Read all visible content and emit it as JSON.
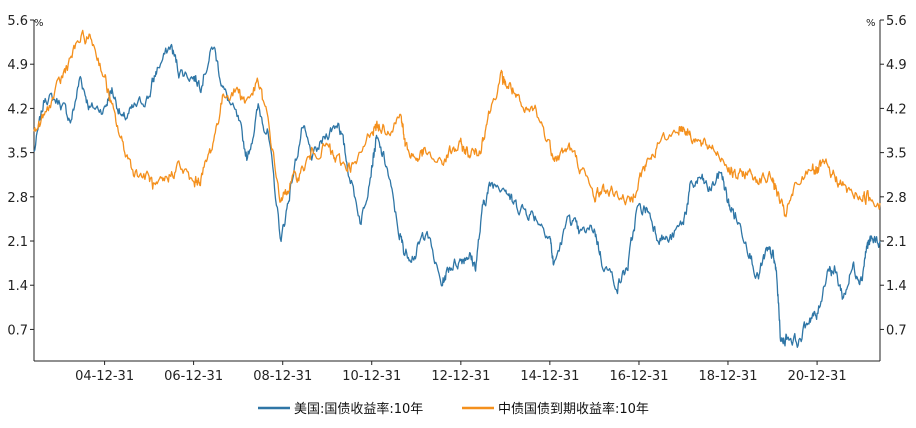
{
  "chart_data": {
    "type": "line",
    "title": "",
    "unit_left": "%",
    "unit_right": "%",
    "ylim": [
      0.2,
      5.6
    ],
    "y_ticks": [
      0.7,
      1.4,
      2.1,
      2.8,
      3.5,
      4.2,
      4.9,
      5.6
    ],
    "y_tick_labels": [
      "0.7",
      "1.4",
      "2.1",
      "2.8",
      "3.5",
      "4.2",
      "4.9",
      "5.6"
    ],
    "x_range": [
      "2003-06-01",
      "2022-05-31"
    ],
    "x_ticks": [
      "2004-12-31",
      "2006-12-31",
      "2008-12-31",
      "2010-12-31",
      "2012-12-31",
      "2014-12-31",
      "2016-12-31",
      "2018-12-31",
      "2020-12-31"
    ],
    "x_tick_labels": [
      "04-12-31",
      "06-12-31",
      "08-12-31",
      "10-12-31",
      "12-12-31",
      "14-12-31",
      "16-12-31",
      "18-12-31",
      "20-12-31"
    ],
    "legend_position": "bottom",
    "series": [
      {
        "name": "美国:国债收益率:10年",
        "color": "#2f76a6",
        "points": [
          [
            "2003-06-01",
            3.5
          ],
          [
            "2003-09-01",
            4.4
          ],
          [
            "2003-12-31",
            4.3
          ],
          [
            "2004-04-01",
            4.0
          ],
          [
            "2004-06-15",
            4.7
          ],
          [
            "2004-09-01",
            4.2
          ],
          [
            "2004-12-31",
            4.2
          ],
          [
            "2005-03-01",
            4.5
          ],
          [
            "2005-06-01",
            4.0
          ],
          [
            "2005-09-01",
            4.2
          ],
          [
            "2005-12-31",
            4.4
          ],
          [
            "2006-03-01",
            4.8
          ],
          [
            "2006-06-28",
            5.2
          ],
          [
            "2006-09-01",
            4.8
          ],
          [
            "2006-12-31",
            4.7
          ],
          [
            "2007-03-01",
            4.6
          ],
          [
            "2007-06-12",
            5.2
          ],
          [
            "2007-09-01",
            4.5
          ],
          [
            "2007-12-31",
            4.0
          ],
          [
            "2008-03-17",
            3.4
          ],
          [
            "2008-06-13",
            4.2
          ],
          [
            "2008-09-01",
            3.8
          ],
          [
            "2008-12-18",
            2.1
          ],
          [
            "2009-03-01",
            2.9
          ],
          [
            "2009-06-10",
            3.9
          ],
          [
            "2009-09-01",
            3.4
          ],
          [
            "2009-12-31",
            3.8
          ],
          [
            "2010-04-05",
            4.0
          ],
          [
            "2010-06-15",
            3.3
          ],
          [
            "2010-10-05",
            2.4
          ],
          [
            "2010-12-31",
            3.3
          ],
          [
            "2011-02-08",
            3.7
          ],
          [
            "2011-05-01",
            3.3
          ],
          [
            "2011-08-15",
            2.2
          ],
          [
            "2011-10-01",
            1.9
          ],
          [
            "2011-12-31",
            1.9
          ],
          [
            "2012-03-20",
            2.3
          ],
          [
            "2012-07-24",
            1.4
          ],
          [
            "2012-10-01",
            1.7
          ],
          [
            "2012-12-31",
            1.8
          ],
          [
            "2013-03-01",
            1.9
          ],
          [
            "2013-05-01",
            1.7
          ],
          [
            "2013-07-05",
            2.7
          ],
          [
            "2013-09-05",
            3.0
          ],
          [
            "2013-12-31",
            3.0
          ],
          [
            "2014-03-01",
            2.7
          ],
          [
            "2014-06-01",
            2.6
          ],
          [
            "2014-09-01",
            2.5
          ],
          [
            "2014-12-31",
            2.2
          ],
          [
            "2015-01-30",
            1.7
          ],
          [
            "2015-06-10",
            2.5
          ],
          [
            "2015-09-01",
            2.2
          ],
          [
            "2015-12-31",
            2.3
          ],
          [
            "2016-03-01",
            1.8
          ],
          [
            "2016-07-08",
            1.4
          ],
          [
            "2016-10-01",
            1.7
          ],
          [
            "2016-12-15",
            2.6
          ],
          [
            "2017-03-13",
            2.6
          ],
          [
            "2017-06-01",
            2.2
          ],
          [
            "2017-09-07",
            2.1
          ],
          [
            "2017-12-31",
            2.4
          ],
          [
            "2018-02-21",
            2.9
          ],
          [
            "2018-05-17",
            3.1
          ],
          [
            "2018-08-01",
            2.9
          ],
          [
            "2018-11-08",
            3.2
          ],
          [
            "2018-12-31",
            2.7
          ],
          [
            "2019-03-01",
            2.5
          ],
          [
            "2019-06-01",
            2.1
          ],
          [
            "2019-09-03",
            1.5
          ],
          [
            "2019-11-07",
            1.9
          ],
          [
            "2019-12-31",
            1.9
          ],
          [
            "2020-02-01",
            1.6
          ],
          [
            "2020-03-09",
            0.5
          ],
          [
            "2020-05-01",
            0.6
          ],
          [
            "2020-08-04",
            0.5
          ],
          [
            "2020-11-01",
            0.9
          ],
          [
            "2020-12-31",
            0.9
          ],
          [
            "2021-03-31",
            1.7
          ],
          [
            "2021-06-01",
            1.6
          ],
          [
            "2021-08-04",
            1.2
          ],
          [
            "2021-10-21",
            1.7
          ],
          [
            "2021-12-31",
            1.5
          ],
          [
            "2022-02-10",
            2.0
          ],
          [
            "2022-03-15",
            2.1
          ],
          [
            "2022-05-31",
            2.1
          ]
        ]
      },
      {
        "name": "中债国债到期收益率:10年",
        "color": "#f4901d",
        "points": [
          [
            "2003-06-01",
            3.8
          ],
          [
            "2003-09-01",
            4.1
          ],
          [
            "2003-12-31",
            4.6
          ],
          [
            "2004-03-01",
            4.9
          ],
          [
            "2004-06-15",
            5.3
          ],
          [
            "2004-09-15",
            5.3
          ],
          [
            "2004-12-31",
            4.7
          ],
          [
            "2005-03-01",
            4.2
          ],
          [
            "2005-06-01",
            3.6
          ],
          [
            "2005-09-01",
            3.2
          ],
          [
            "2005-12-31",
            3.1
          ],
          [
            "2006-03-01",
            2.9
          ],
          [
            "2006-06-01",
            3.1
          ],
          [
            "2006-09-01",
            3.3
          ],
          [
            "2006-12-31",
            3.0
          ],
          [
            "2007-03-01",
            3.1
          ],
          [
            "2007-06-01",
            3.6
          ],
          [
            "2007-09-01",
            4.4
          ],
          [
            "2007-12-31",
            4.5
          ],
          [
            "2008-03-01",
            4.3
          ],
          [
            "2008-06-13",
            4.6
          ],
          [
            "2008-09-01",
            4.0
          ],
          [
            "2008-12-15",
            2.7
          ],
          [
            "2009-03-01",
            3.0
          ],
          [
            "2009-06-01",
            3.2
          ],
          [
            "2009-09-01",
            3.5
          ],
          [
            "2009-12-31",
            3.6
          ],
          [
            "2010-03-01",
            3.4
          ],
          [
            "2010-06-01",
            3.3
          ],
          [
            "2010-09-01",
            3.3
          ],
          [
            "2010-12-31",
            3.9
          ],
          [
            "2011-03-01",
            3.9
          ],
          [
            "2011-06-01",
            3.9
          ],
          [
            "2011-08-31",
            4.1
          ],
          [
            "2011-10-01",
            3.6
          ],
          [
            "2011-12-31",
            3.4
          ],
          [
            "2012-03-01",
            3.5
          ],
          [
            "2012-07-20",
            3.3
          ],
          [
            "2012-10-01",
            3.5
          ],
          [
            "2012-12-31",
            3.6
          ],
          [
            "2013-03-01",
            3.5
          ],
          [
            "2013-06-01",
            3.5
          ],
          [
            "2013-08-01",
            4.0
          ],
          [
            "2013-11-20",
            4.7
          ],
          [
            "2013-12-31",
            4.6
          ],
          [
            "2014-03-01",
            4.5
          ],
          [
            "2014-06-01",
            4.1
          ],
          [
            "2014-09-01",
            4.2
          ],
          [
            "2014-12-31",
            3.6
          ],
          [
            "2015-03-01",
            3.4
          ],
          [
            "2015-06-01",
            3.6
          ],
          [
            "2015-09-01",
            3.3
          ],
          [
            "2015-12-31",
            2.8
          ],
          [
            "2016-03-01",
            2.9
          ],
          [
            "2016-06-01",
            2.9
          ],
          [
            "2016-10-21",
            2.7
          ],
          [
            "2016-12-31",
            3.1
          ],
          [
            "2017-03-01",
            3.3
          ],
          [
            "2017-06-01",
            3.6
          ],
          [
            "2017-11-20",
            3.9
          ],
          [
            "2017-12-31",
            3.9
          ],
          [
            "2018-03-01",
            3.8
          ],
          [
            "2018-06-01",
            3.6
          ],
          [
            "2018-09-01",
            3.6
          ],
          [
            "2018-12-31",
            3.3
          ],
          [
            "2019-03-01",
            3.1
          ],
          [
            "2019-06-01",
            3.2
          ],
          [
            "2019-09-01",
            3.1
          ],
          [
            "2019-12-31",
            3.1
          ],
          [
            "2020-02-01",
            2.9
          ],
          [
            "2020-04-08",
            2.5
          ],
          [
            "2020-07-01",
            2.9
          ],
          [
            "2020-11-20",
            3.3
          ],
          [
            "2020-12-31",
            3.2
          ],
          [
            "2021-03-01",
            3.3
          ],
          [
            "2021-06-01",
            3.1
          ],
          [
            "2021-09-01",
            2.9
          ],
          [
            "2021-12-31",
            2.8
          ],
          [
            "2022-03-01",
            2.8
          ],
          [
            "2022-05-31",
            2.7
          ]
        ]
      }
    ]
  }
}
